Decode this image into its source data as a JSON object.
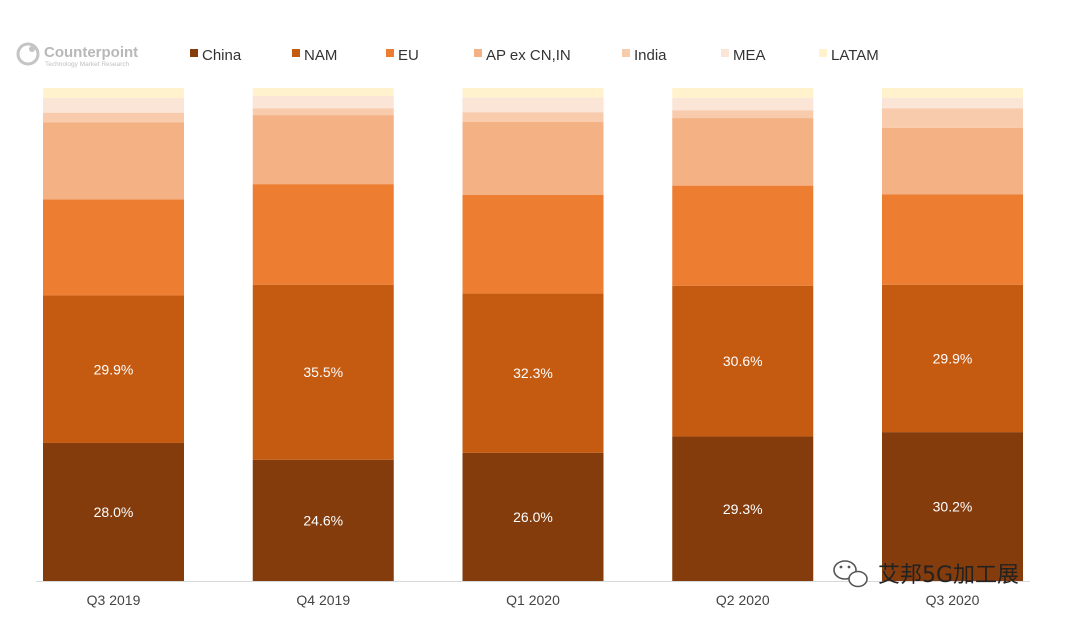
{
  "brand": {
    "name": "Counterpoint",
    "tagline": "Technology Market Research"
  },
  "watermark": {
    "text": "艾邦5G加工展",
    "icon": "wechat-icon"
  },
  "chart_data": {
    "type": "bar",
    "stacked": true,
    "categories": [
      "Q3 2019",
      "Q4 2019",
      "Q1 2020",
      "Q2 2020",
      "Q3 2020"
    ],
    "ylim": [
      0,
      100
    ],
    "grid": false,
    "legend_position": "top",
    "series": [
      {
        "name": "China",
        "color": "#843c0c",
        "values": [
          28.0,
          24.6,
          26.0,
          29.3,
          30.2
        ],
        "labels": [
          "28.0%",
          "24.6%",
          "26.0%",
          "29.3%",
          "30.2%"
        ]
      },
      {
        "name": "NAM",
        "color": "#c55a11",
        "values": [
          29.9,
          35.5,
          32.3,
          30.6,
          29.9
        ],
        "labels": [
          "29.9%",
          "35.5%",
          "32.3%",
          "30.6%",
          "29.9%"
        ]
      },
      {
        "name": "EU",
        "color": "#ed7d31",
        "values": [
          19.5,
          20.4,
          20.0,
          20.3,
          18.3
        ]
      },
      {
        "name": "AP ex CN,IN",
        "color": "#f4b183",
        "values": [
          15.6,
          14.0,
          14.8,
          13.7,
          13.5
        ]
      },
      {
        "name": "India",
        "color": "#f8cbad",
        "values": [
          2.0,
          1.4,
          2.0,
          1.6,
          4.0
        ]
      },
      {
        "name": "MEA",
        "color": "#fbe5d6",
        "values": [
          3.0,
          2.5,
          3.0,
          2.5,
          2.1
        ]
      },
      {
        "name": "LATAM",
        "color": "#fff2cc",
        "values": [
          2.0,
          1.6,
          1.9,
          2.0,
          2.0
        ]
      }
    ]
  }
}
